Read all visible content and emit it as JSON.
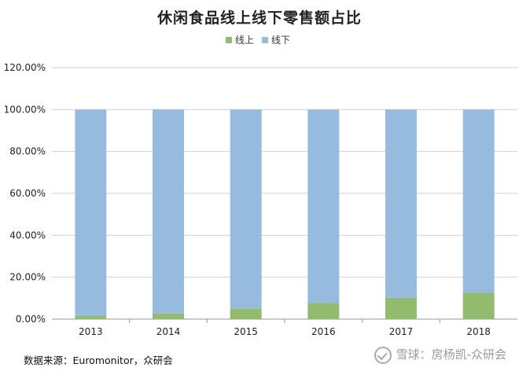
{
  "chart_data": {
    "type": "bar",
    "stacked": true,
    "title": "休闲食品线上线下零售额占比",
    "categories": [
      "2013",
      "2014",
      "2015",
      "2016",
      "2017",
      "2018"
    ],
    "series": [
      {
        "name": "线上",
        "color": "#92bb6d",
        "values": [
          1.5,
          2.7,
          5.0,
          7.8,
          10.2,
          12.6
        ]
      },
      {
        "name": "线下",
        "color": "#97bbdf",
        "values": [
          98.5,
          97.3,
          95.0,
          92.2,
          89.8,
          87.4
        ]
      }
    ],
    "y_ticks": [
      "0.00%",
      "20.00%",
      "40.00%",
      "60.00%",
      "80.00%",
      "100.00%",
      "120.00%"
    ],
    "ylim": [
      0,
      120
    ],
    "grid": true,
    "legend_position": "top-center"
  },
  "source_text": "数据来源：Euromonitor，众研会",
  "watermark_text": "雪球：房杨凯-众研会"
}
